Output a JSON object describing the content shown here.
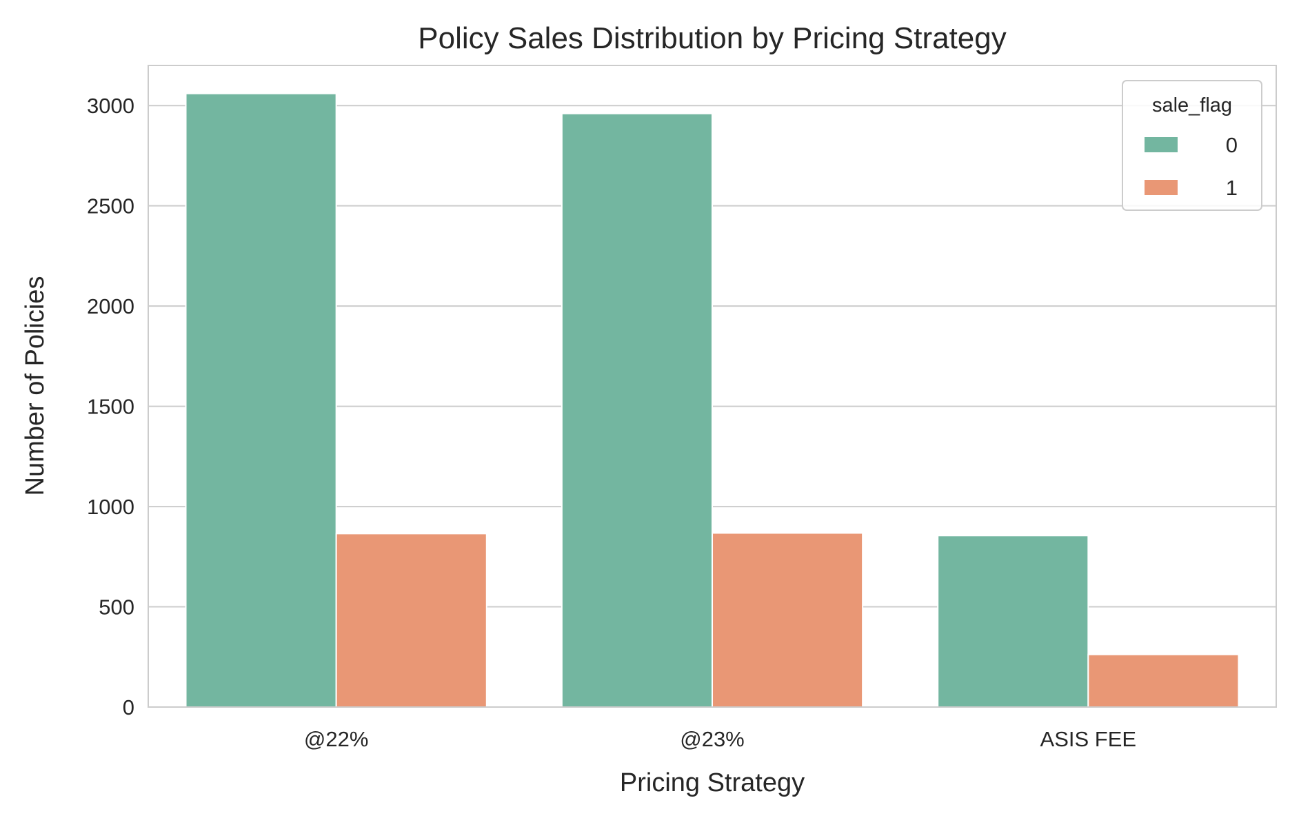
{
  "chart_data": {
    "type": "bar",
    "title": "Policy Sales Distribution by Pricing Strategy",
    "xlabel": "Pricing Strategy",
    "ylabel": "Number of Policies",
    "categories": [
      "@22%",
      "@23%",
      "ASIS FEE"
    ],
    "series": [
      {
        "name": "0",
        "color": "#73b6a0",
        "values": [
          3060,
          2960,
          855
        ]
      },
      {
        "name": "1",
        "color": "#e99775",
        "values": [
          865,
          868,
          262
        ]
      }
    ],
    "ylim": [
      0,
      3200
    ],
    "yticks": [
      0,
      500,
      1000,
      1500,
      2000,
      2500,
      3000
    ],
    "grid": "horizontal",
    "legend": {
      "title": "sale_flag",
      "placement": "top-right"
    }
  }
}
